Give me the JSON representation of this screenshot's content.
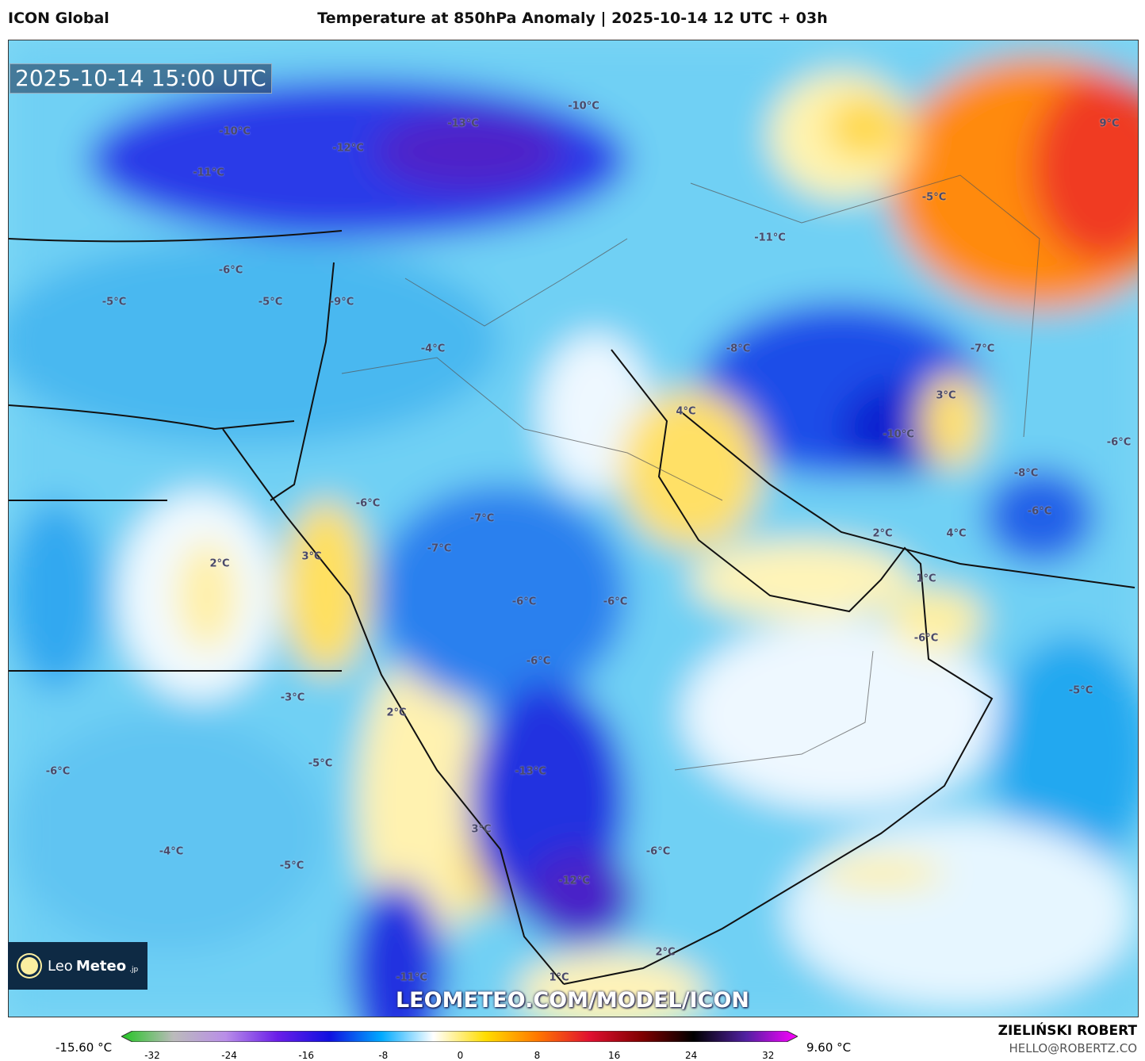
{
  "header": {
    "model": "ICON Global",
    "title": "Temperature at 850hPa Anomaly | 2025-10-14 12 UTC + 03h"
  },
  "map": {
    "timestamp": "2025-10-14 15:00 UTC",
    "watermark_url": "LEOMETEO.COM/MODEL/ICON",
    "logo": "LeoMeteo.jp",
    "labels": [
      "-10°C",
      "-12°C",
      "-13°C",
      "-10°C",
      "-11°C",
      "-6°C",
      "-5°C",
      "-5°C",
      "-9°C",
      "-4°C",
      "-11°C",
      "-5°C",
      "9°C",
      "-8°C",
      "-7°C",
      "3°C",
      "4°C",
      "-10°C",
      "-6°C",
      "-8°C",
      "-6°C",
      "-6°C",
      "-7°C",
      "-7°C",
      "3°C",
      "2°C",
      "2°C",
      "4°C",
      "1°C",
      "-6°C",
      "-6°C",
      "-6°C",
      "-6°C",
      "-3°C",
      "-5°C",
      "2°C",
      "-6°C",
      "-5°C",
      "-13°C",
      "3°C",
      "-4°C",
      "-6°C",
      "-5°C",
      "-12°C",
      "2°C",
      "-11°C",
      "1°C"
    ]
  },
  "colorbar": {
    "min_label": "-15.60 °C",
    "max_label": "9.60 °C",
    "ticks": [
      "-32",
      "-24",
      "-16",
      "-8",
      "0",
      "8",
      "16",
      "24",
      "32"
    ],
    "colors": [
      "#22c522",
      "#bbbbbb",
      "#b98ee8",
      "#6a1ee8",
      "#1010e0",
      "#00aaff",
      "#ffffff",
      "#ffdd00",
      "#ff7700",
      "#e01030",
      "#800000",
      "#000000",
      "#5020a0",
      "#ff00ff"
    ]
  },
  "footer": {
    "author": "ZIELIŃSKI ROBERT",
    "email": "HELLO@ROBERTZ.CO"
  }
}
